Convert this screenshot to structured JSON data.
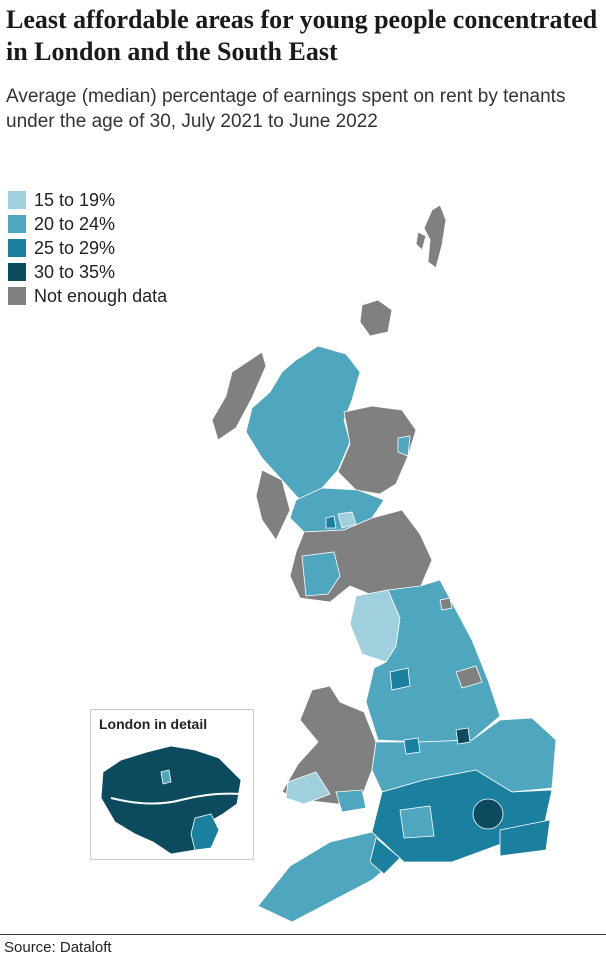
{
  "title": "Least affordable areas for young people concentrated in London and the South East",
  "subtitle": "Average (median) percentage of earnings spent on rent by tenants under the age of 30, July 2021 to June 2022",
  "legend": [
    {
      "label": "15 to 19%",
      "color": "#a0d0de"
    },
    {
      "label": "20 to 24%",
      "color": "#4ea7bf"
    },
    {
      "label": "25 to 29%",
      "color": "#1b7f9f"
    },
    {
      "label": "30 to 35%",
      "color": "#0c4a5e"
    },
    {
      "label": "Not enough data",
      "color": "#808080"
    }
  ],
  "inset_title": "London in detail",
  "source": "Source: Dataloft"
}
